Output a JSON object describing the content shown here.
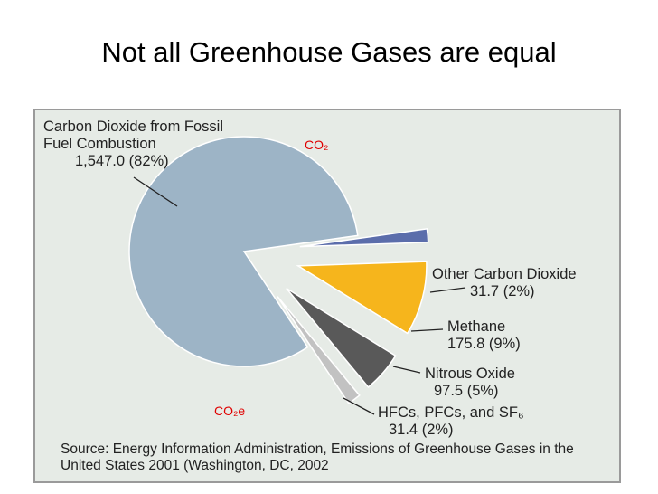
{
  "chart_data": {
    "type": "pie",
    "title": "Not all Greenhouse Gases are equal",
    "categories": [
      "Carbon Dioxide from Fossil Fuel Combustion",
      "Other Carbon Dioxide",
      "Methane",
      "Nitrous Oxide",
      "HFCs, PFCs, and SF₆"
    ],
    "values": [
      1547.0,
      31.7,
      175.8,
      97.5,
      31.4
    ],
    "value_labels": [
      "1,547.0",
      "31.7",
      "175.8",
      "97.5",
      "31.4"
    ],
    "percents": [
      82,
      2,
      9,
      5,
      2
    ],
    "percent_labels": [
      "(82%)",
      "(2%)",
      "(9%)",
      "(5%)",
      "(2%)"
    ],
    "colors": [
      "#9db4c6",
      "#5b6dab",
      "#f6b51c",
      "#595959",
      "#c2c2c2"
    ],
    "annotations": [
      "CO₂",
      "CO₂e"
    ],
    "source": "Source: Energy Information Administration, Emissions of Greenhouse Gases in the United States 2001 (Washington, DC, 2002"
  }
}
